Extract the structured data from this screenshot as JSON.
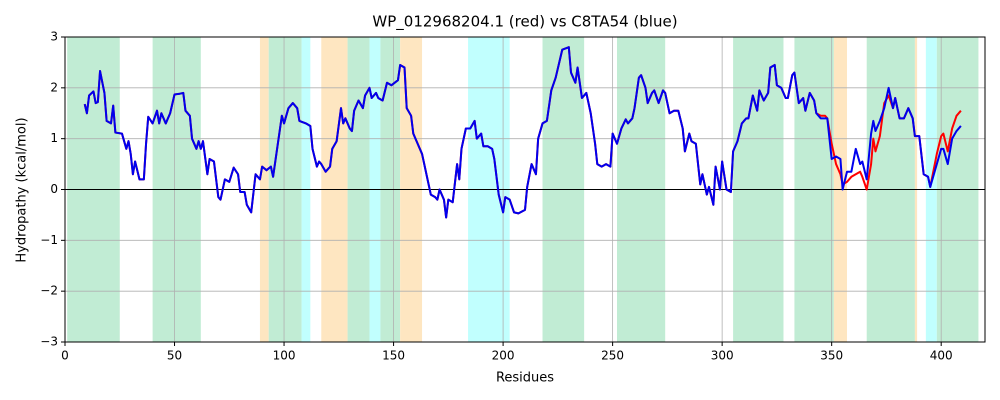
{
  "chart_data": {
    "type": "line",
    "title": "WP_012968204.1 (red) vs C8TA54 (blue)",
    "xlabel": "Residues",
    "ylabel": "Hydropathy (kcal/mol)",
    "xlim": [
      0,
      420
    ],
    "xticks": [
      0,
      50,
      100,
      150,
      200,
      250,
      300,
      350,
      400
    ],
    "ylim": [
      -3,
      3
    ],
    "yticks": [
      {
        "value": -3,
        "label": "−3"
      },
      {
        "value": -2,
        "label": "−2"
      },
      {
        "value": -1,
        "label": "−1"
      },
      0,
      1,
      2,
      3
    ],
    "grid": true,
    "reference_line": 0,
    "spans": [
      {
        "start": 1,
        "end": 25,
        "color": "#c1ecd4"
      },
      {
        "start": 40,
        "end": 62,
        "color": "#c1ecd4"
      },
      {
        "start": 89,
        "end": 93,
        "color": "#fee6c1"
      },
      {
        "start": 93,
        "end": 108,
        "color": "#c1ecd4"
      },
      {
        "start": 108,
        "end": 112,
        "color": "#c1fffe"
      },
      {
        "start": 117,
        "end": 129,
        "color": "#fee6c1"
      },
      {
        "start": 129,
        "end": 139,
        "color": "#c1ecd4"
      },
      {
        "start": 139,
        "end": 144,
        "color": "#c1fffe"
      },
      {
        "start": 144,
        "end": 153,
        "color": "#c1ecd4"
      },
      {
        "start": 153,
        "end": 163,
        "color": "#fee6c1"
      },
      {
        "start": 184,
        "end": 203,
        "color": "#c1fffe"
      },
      {
        "start": 218,
        "end": 237,
        "color": "#c1ecd4"
      },
      {
        "start": 252,
        "end": 274,
        "color": "#c1ecd4"
      },
      {
        "start": 305,
        "end": 328,
        "color": "#c1ecd4"
      },
      {
        "start": 333,
        "end": 351,
        "color": "#c1ecd4"
      },
      {
        "start": 351,
        "end": 357,
        "color": "#fee6c1"
      },
      {
        "start": 366,
        "end": 388,
        "color": "#c1ecd4"
      },
      {
        "start": 388,
        "end": 389,
        "color": "#fee6c1"
      },
      {
        "start": 393,
        "end": 398,
        "color": "#c1fffe"
      },
      {
        "start": 398,
        "end": 417,
        "color": "#c1ecd4"
      }
    ],
    "x": [
      9,
      10,
      11,
      13,
      14,
      15,
      16,
      18,
      19,
      21,
      22,
      23,
      26,
      28,
      29,
      30,
      31,
      32,
      34,
      36,
      37,
      38,
      40,
      42,
      43,
      44,
      46,
      48,
      50,
      52,
      54,
      55,
      57,
      58,
      60,
      61,
      62,
      63,
      65,
      66,
      68,
      70,
      71,
      73,
      75,
      77,
      79,
      80,
      82,
      83,
      85,
      87,
      89,
      90,
      92,
      94,
      95,
      97,
      99,
      100,
      102,
      104,
      106,
      107,
      110,
      112,
      113,
      115,
      116,
      117,
      119,
      121,
      122,
      124,
      126,
      127,
      128,
      130,
      131,
      132,
      134,
      136,
      137,
      139,
      140,
      142,
      143,
      145,
      147,
      149,
      152,
      153,
      155,
      156,
      158,
      159,
      161,
      163,
      164,
      166,
      167,
      169,
      170,
      171,
      173,
      174,
      175,
      177,
      179,
      180,
      181,
      183,
      185,
      187,
      188,
      190,
      191,
      193,
      195,
      196,
      198,
      200,
      201,
      203,
      205,
      207,
      210,
      211,
      213,
      215,
      216,
      218,
      220,
      222,
      224,
      227,
      230,
      231,
      233,
      234,
      236,
      238,
      240,
      242,
      243,
      245,
      247,
      249,
      250,
      252,
      254,
      256,
      257,
      259,
      260,
      262,
      263,
      265,
      266,
      268,
      269,
      271,
      273,
      274,
      276,
      278,
      280,
      282,
      283,
      285,
      286,
      288,
      290,
      291,
      293,
      294,
      296,
      297,
      299,
      300,
      302,
      304,
      305,
      307,
      309,
      311,
      312,
      314,
      316,
      317,
      319,
      321,
      322,
      324,
      325,
      327,
      329,
      330,
      332,
      333,
      335,
      337,
      338,
      340,
      342,
      343,
      345,
      347,
      348,
      350,
      352,
      354,
      355,
      357,
      359,
      361,
      363,
      364,
      366,
      368,
      369,
      370,
      372,
      374,
      376,
      378,
      379,
      381,
      383,
      385,
      387,
      388,
      390,
      392,
      394,
      395,
      398,
      400,
      401,
      403,
      405,
      407,
      409
    ],
    "series": [
      {
        "name": "WP_012968204.1",
        "color": "#ff0000",
        "values": [
          1.68,
          1.5,
          1.85,
          1.93,
          1.7,
          1.72,
          2.33,
          1.9,
          1.35,
          1.3,
          1.65,
          1.12,
          1.1,
          0.8,
          0.95,
          0.7,
          0.3,
          0.55,
          0.2,
          0.2,
          0.9,
          1.43,
          1.3,
          1.55,
          1.3,
          1.5,
          1.3,
          1.5,
          1.87,
          1.88,
          1.9,
          1.55,
          1.45,
          1.0,
          0.8,
          0.95,
          0.8,
          0.95,
          0.3,
          0.6,
          0.55,
          -0.15,
          -0.2,
          0.2,
          0.15,
          0.43,
          0.3,
          -0.05,
          -0.05,
          -0.3,
          -0.45,
          0.3,
          0.2,
          0.45,
          0.38,
          0.45,
          0.25,
          0.85,
          1.45,
          1.3,
          1.6,
          1.7,
          1.6,
          1.35,
          1.3,
          1.25,
          0.8,
          0.45,
          0.55,
          0.5,
          0.35,
          0.45,
          0.8,
          0.95,
          1.6,
          1.3,
          1.4,
          1.2,
          1.15,
          1.55,
          1.75,
          1.6,
          1.85,
          2.0,
          1.8,
          1.9,
          1.8,
          1.75,
          2.1,
          2.05,
          2.15,
          2.45,
          2.4,
          1.6,
          1.45,
          1.1,
          0.9,
          0.7,
          0.5,
          0.1,
          -0.1,
          -0.15,
          -0.2,
          0.0,
          -0.2,
          -0.55,
          -0.2,
          -0.25,
          0.5,
          0.2,
          0.8,
          1.2,
          1.2,
          1.35,
          1.0,
          1.1,
          0.85,
          0.85,
          0.8,
          0.6,
          -0.1,
          -0.45,
          -0.15,
          -0.2,
          -0.45,
          -0.47,
          -0.4,
          0.05,
          0.5,
          0.3,
          1.0,
          1.3,
          1.35,
          1.95,
          2.2,
          2.75,
          2.8,
          2.3,
          2.1,
          2.4,
          1.8,
          1.9,
          1.5,
          0.9,
          0.5,
          0.45,
          0.5,
          0.45,
          1.1,
          0.9,
          1.2,
          1.38,
          1.3,
          1.4,
          1.6,
          2.2,
          2.25,
          2.0,
          1.7,
          1.9,
          1.95,
          1.7,
          1.95,
          1.9,
          1.5,
          1.55,
          1.55,
          1.2,
          0.75,
          1.1,
          0.95,
          0.9,
          0.1,
          0.3,
          -0.1,
          0.05,
          -0.3,
          0.45,
          0.0,
          0.55,
          0.0,
          -0.05,
          0.75,
          0.95,
          1.3,
          1.4,
          1.4,
          1.85,
          1.55,
          1.95,
          1.75,
          1.9,
          2.4,
          2.45,
          2.05,
          2.0,
          1.8,
          1.8,
          2.25,
          2.3,
          1.7,
          1.8,
          1.55,
          1.9,
          1.75,
          1.5,
          1.45,
          1.45,
          1.4,
          0.9,
          0.5,
          0.3,
          0.1,
          0.15,
          0.25,
          0.3,
          0.35,
          0.25,
          0.0,
          0.5,
          1.0,
          0.75,
          1.05,
          1.7,
          1.85,
          1.6,
          1.8,
          1.4,
          1.4,
          1.6,
          1.4,
          1.05,
          1.05,
          0.3,
          0.25,
          0.05,
          0.7,
          1.05,
          1.1,
          0.75,
          1.2,
          1.45,
          1.55
        ]
      },
      {
        "name": "C8TA54",
        "color": "#0000ee",
        "values": [
          1.68,
          1.5,
          1.85,
          1.93,
          1.7,
          1.72,
          2.33,
          1.9,
          1.35,
          1.3,
          1.65,
          1.12,
          1.1,
          0.8,
          0.95,
          0.7,
          0.3,
          0.55,
          0.2,
          0.2,
          0.9,
          1.43,
          1.3,
          1.55,
          1.3,
          1.5,
          1.3,
          1.5,
          1.87,
          1.88,
          1.9,
          1.55,
          1.45,
          1.0,
          0.8,
          0.95,
          0.8,
          0.95,
          0.3,
          0.6,
          0.55,
          -0.15,
          -0.2,
          0.2,
          0.15,
          0.43,
          0.3,
          -0.05,
          -0.05,
          -0.3,
          -0.45,
          0.3,
          0.2,
          0.45,
          0.38,
          0.45,
          0.25,
          0.85,
          1.45,
          1.3,
          1.6,
          1.7,
          1.6,
          1.35,
          1.3,
          1.25,
          0.8,
          0.45,
          0.55,
          0.5,
          0.35,
          0.45,
          0.8,
          0.95,
          1.6,
          1.3,
          1.4,
          1.2,
          1.15,
          1.55,
          1.75,
          1.6,
          1.85,
          2.0,
          1.8,
          1.9,
          1.8,
          1.75,
          2.1,
          2.05,
          2.15,
          2.45,
          2.4,
          1.6,
          1.45,
          1.1,
          0.9,
          0.7,
          0.5,
          0.1,
          -0.1,
          -0.15,
          -0.2,
          0.0,
          -0.2,
          -0.55,
          -0.2,
          -0.25,
          0.5,
          0.2,
          0.8,
          1.2,
          1.2,
          1.35,
          1.0,
          1.1,
          0.85,
          0.85,
          0.8,
          0.6,
          -0.1,
          -0.45,
          -0.15,
          -0.2,
          -0.45,
          -0.47,
          -0.4,
          0.05,
          0.5,
          0.3,
          1.0,
          1.3,
          1.35,
          1.95,
          2.2,
          2.75,
          2.8,
          2.3,
          2.1,
          2.4,
          1.8,
          1.9,
          1.5,
          0.9,
          0.5,
          0.45,
          0.5,
          0.45,
          1.1,
          0.9,
          1.2,
          1.38,
          1.3,
          1.4,
          1.6,
          2.2,
          2.25,
          2.0,
          1.7,
          1.9,
          1.95,
          1.7,
          1.95,
          1.9,
          1.5,
          1.55,
          1.55,
          1.2,
          0.75,
          1.1,
          0.95,
          0.9,
          0.1,
          0.3,
          -0.1,
          0.05,
          -0.3,
          0.45,
          0.0,
          0.55,
          0.0,
          -0.05,
          0.75,
          0.95,
          1.3,
          1.4,
          1.4,
          1.85,
          1.55,
          1.95,
          1.75,
          1.9,
          2.4,
          2.45,
          2.05,
          2.0,
          1.8,
          1.8,
          2.25,
          2.3,
          1.7,
          1.8,
          1.55,
          1.9,
          1.75,
          1.5,
          1.4,
          1.4,
          1.4,
          0.6,
          0.65,
          0.6,
          0.0,
          0.35,
          0.35,
          0.8,
          0.5,
          0.55,
          0.2,
          1.1,
          1.35,
          1.15,
          1.35,
          1.6,
          2.0,
          1.6,
          1.8,
          1.4,
          1.4,
          1.6,
          1.4,
          1.05,
          1.05,
          0.3,
          0.25,
          0.05,
          0.5,
          0.8,
          0.8,
          0.5,
          1.0,
          1.15,
          1.25
        ]
      }
    ]
  }
}
